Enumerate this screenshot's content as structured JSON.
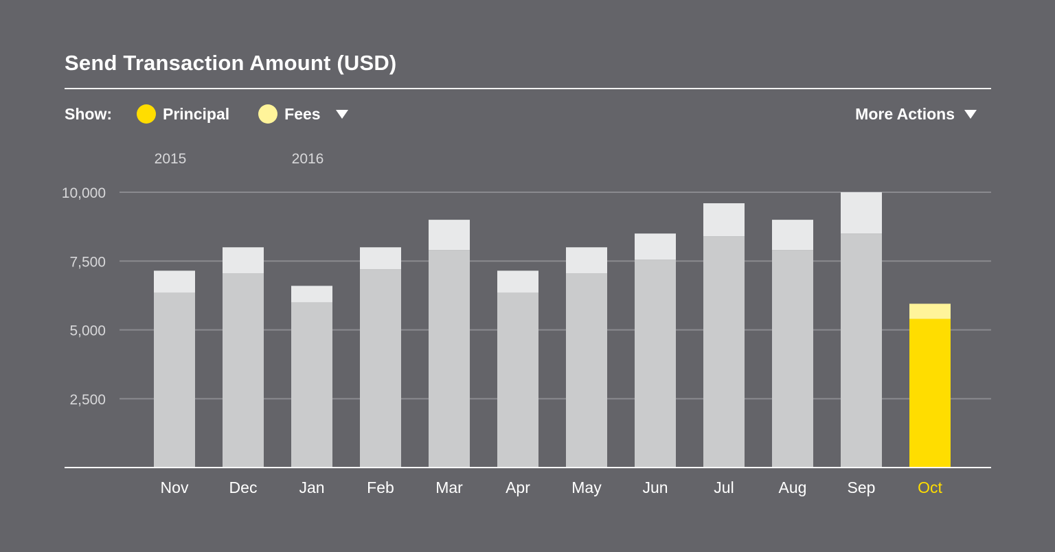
{
  "title": "Send Transaction Amount (USD)",
  "controls": {
    "show_label": "Show:",
    "principal_label": "Principal",
    "fees_label": "Fees",
    "more_actions_label": "More Actions"
  },
  "colors": {
    "background": "#646469",
    "principal_highlight": "#ffdd00",
    "fees_highlight": "#fff49a",
    "principal_muted": "#cacbcc",
    "fees_muted": "#e8e9ea",
    "grid": "#8a8a8f",
    "axis": "#ffffff",
    "tick_text": "#d8d8da",
    "label_text": "#ffffff"
  },
  "chart_data": {
    "type": "bar",
    "stacked": true,
    "categories": [
      "Nov",
      "Dec",
      "Jan",
      "Feb",
      "Mar",
      "Apr",
      "May",
      "Jun",
      "Jul",
      "Aug",
      "Sep",
      "Oct"
    ],
    "year_labels": [
      {
        "label": "2015",
        "category": "Nov"
      },
      {
        "label": "2016",
        "category": "Jan"
      }
    ],
    "series": [
      {
        "name": "Principal",
        "values": [
          6350,
          7050,
          6000,
          7200,
          7900,
          6350,
          7050,
          7550,
          8400,
          7900,
          8500,
          5400
        ]
      },
      {
        "name": "Fees",
        "values": [
          800,
          950,
          600,
          800,
          1100,
          800,
          950,
          950,
          1200,
          1100,
          1500,
          550
        ]
      }
    ],
    "highlight_category": "Oct",
    "yticks": [
      2500,
      5000,
      7500,
      10000
    ],
    "ytick_labels": [
      "2,500",
      "5,000",
      "7,500",
      "10,000"
    ],
    "ylim": [
      0,
      10000
    ],
    "grid": true
  }
}
